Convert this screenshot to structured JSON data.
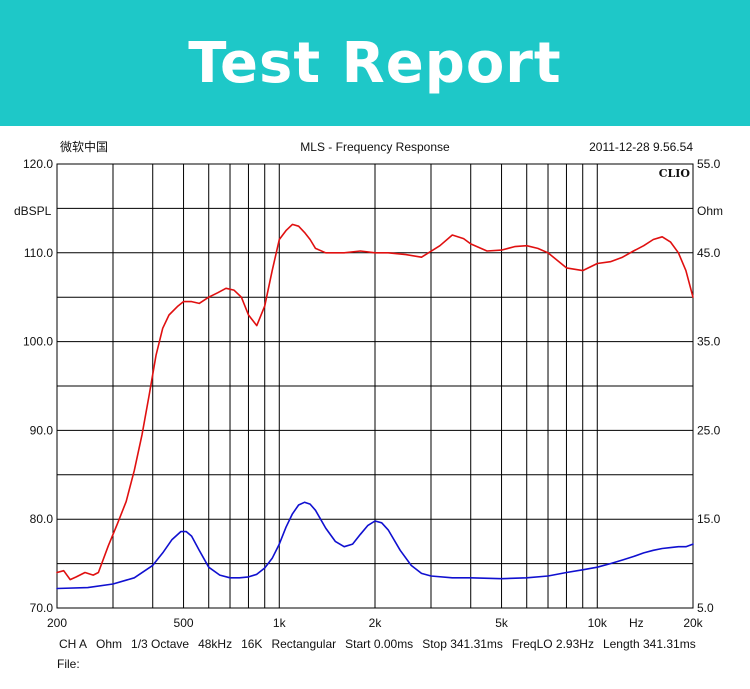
{
  "banner": {
    "title": "Test Report"
  },
  "header": {
    "left": "微软中国",
    "center": "MLS - Frequency Response",
    "right": "2011-12-28 9.56.54",
    "brand": "CLIO"
  },
  "colors": {
    "banner": "#1ec8c8",
    "spl": "#e01010",
    "impedance": "#1010d0",
    "grid": "#000000"
  },
  "chart_data": {
    "type": "line",
    "title": "MLS - Frequency Response",
    "xscale": "log",
    "xlim": [
      200,
      20000
    ],
    "ylim": [
      70,
      120
    ],
    "y2lim": [
      5,
      55
    ],
    "ylabel": "dBSPL",
    "y2label": "Ohm",
    "xunit": "Hz",
    "x_tick_labels": [
      {
        "v": 200,
        "t": "200"
      },
      {
        "v": 500,
        "t": "500"
      },
      {
        "v": 1000,
        "t": "1k"
      },
      {
        "v": 2000,
        "t": "2k"
      },
      {
        "v": 5000,
        "t": "5k"
      },
      {
        "v": 10000,
        "t": "10k"
      },
      {
        "v": 20000,
        "t": "20k"
      }
    ],
    "x_gridlines": [
      300,
      400,
      500,
      600,
      700,
      800,
      900,
      1000,
      2000,
      3000,
      4000,
      5000,
      6000,
      7000,
      8000,
      9000,
      10000
    ],
    "y_tick_labels": [
      {
        "v": 120,
        "t": "120.0"
      },
      {
        "v": 110,
        "t": "110.0"
      },
      {
        "v": 100,
        "t": "100.0"
      },
      {
        "v": 90,
        "t": "90.0"
      },
      {
        "v": 80,
        "t": "80.0"
      },
      {
        "v": 70,
        "t": "70.0"
      }
    ],
    "y2_tick_labels": [
      {
        "v": 55,
        "t": "55.0"
      },
      {
        "v": 45,
        "t": "45.0"
      },
      {
        "v": 35,
        "t": "35.0"
      },
      {
        "v": 25,
        "t": "25.0"
      },
      {
        "v": 15,
        "t": "15.0"
      },
      {
        "v": 5,
        "t": "5.0"
      }
    ],
    "y_gridlines": [
      75,
      80,
      85,
      90,
      95,
      100,
      105,
      110,
      115
    ],
    "series": [
      {
        "axis": "left",
        "color": "#e01010",
        "x": [
          200,
          210,
          220,
          230,
          245,
          260,
          270,
          290,
          310,
          330,
          350,
          370,
          390,
          410,
          430,
          450,
          480,
          500,
          530,
          560,
          600,
          640,
          680,
          720,
          760,
          800,
          850,
          900,
          950,
          1000,
          1050,
          1100,
          1150,
          1200,
          1250,
          1300,
          1400,
          1500,
          1600,
          1800,
          2000,
          2200,
          2500,
          2800,
          3200,
          3500,
          3800,
          4000,
          4500,
          5000,
          5500,
          6000,
          6500,
          7000,
          8000,
          9000,
          10000,
          11000,
          12000,
          13000,
          14000,
          15000,
          16000,
          17000,
          18000,
          19000,
          20000
        ],
        "y": [
          74.0,
          74.2,
          73.2,
          73.5,
          74.0,
          73.7,
          74.0,
          77.0,
          79.5,
          82.0,
          85.5,
          89.5,
          94.0,
          98.5,
          101.5,
          103.0,
          104.0,
          104.5,
          104.5,
          104.3,
          105.0,
          105.5,
          106.0,
          105.8,
          105.0,
          103.0,
          101.8,
          104.0,
          108.0,
          111.5,
          112.5,
          113.2,
          113.0,
          112.3,
          111.5,
          110.5,
          110.0,
          110.0,
          110.0,
          110.2,
          110.0,
          110.0,
          109.8,
          109.5,
          110.8,
          112.0,
          111.6,
          111.0,
          110.2,
          110.3,
          110.7,
          110.8,
          110.5,
          110.0,
          108.3,
          108.0,
          108.8,
          109.0,
          109.5,
          110.2,
          110.8,
          111.5,
          111.8,
          111.2,
          110.0,
          108.0,
          105.0
        ]
      },
      {
        "axis": "right",
        "color": "#1010d0",
        "x": [
          200,
          250,
          300,
          350,
          400,
          430,
          460,
          490,
          510,
          530,
          560,
          600,
          650,
          700,
          750,
          800,
          850,
          900,
          950,
          1000,
          1050,
          1100,
          1150,
          1200,
          1250,
          1300,
          1400,
          1500,
          1600,
          1700,
          1800,
          1900,
          2000,
          2100,
          2200,
          2400,
          2600,
          2800,
          3000,
          3500,
          4000,
          5000,
          6000,
          7000,
          8000,
          9000,
          10000,
          11000,
          12000,
          13000,
          14000,
          15000,
          16000,
          17000,
          18000,
          19000,
          20000
        ],
        "y": [
          7.2,
          7.3,
          7.7,
          8.4,
          9.8,
          11.2,
          12.7,
          13.6,
          13.6,
          13.1,
          11.5,
          9.6,
          8.7,
          8.4,
          8.4,
          8.5,
          8.8,
          9.5,
          10.6,
          12.2,
          14.1,
          15.6,
          16.6,
          16.9,
          16.7,
          16.0,
          14.0,
          12.5,
          11.9,
          12.2,
          13.3,
          14.3,
          14.8,
          14.6,
          13.8,
          11.5,
          9.8,
          8.9,
          8.6,
          8.4,
          8.4,
          8.3,
          8.4,
          8.6,
          9.0,
          9.3,
          9.6,
          10.0,
          10.4,
          10.8,
          11.2,
          11.5,
          11.7,
          11.8,
          11.9,
          11.9,
          12.2
        ]
      }
    ]
  },
  "footer": {
    "items": [
      "CH A",
      "Ohm",
      "1/3 Octave",
      "48kHz",
      "16K",
      "Rectangular",
      "Start 0.00ms",
      "Stop 341.31ms",
      "FreqLO 2.93Hz",
      "Length 341.31ms"
    ],
    "file_label": "File:"
  }
}
